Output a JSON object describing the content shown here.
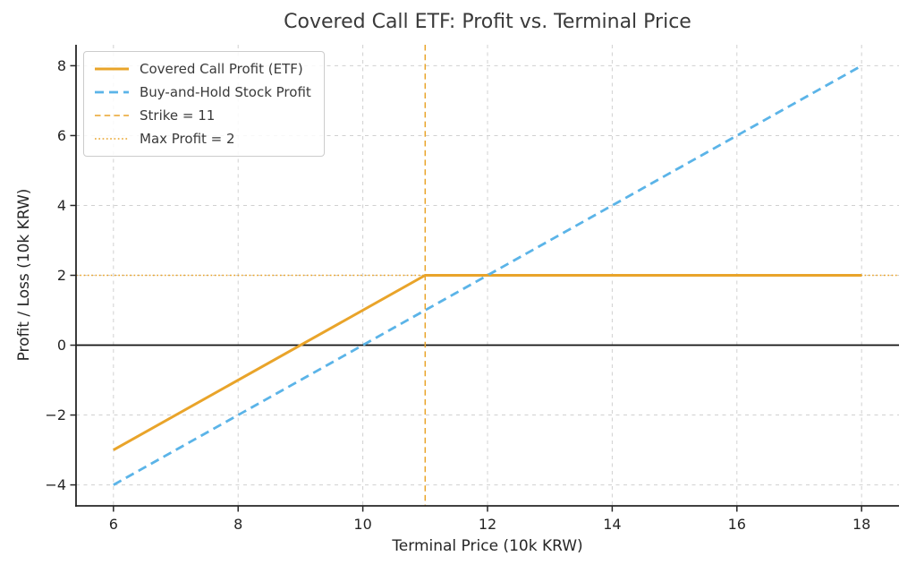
{
  "chart_data": {
    "type": "line",
    "title": "Covered Call ETF: Profit vs. Terminal Price",
    "xlabel": "Terminal Price (10k KRW)",
    "ylabel": "Profit / Loss (10k KRW)",
    "xlim": [
      5.4,
      18.6
    ],
    "ylim": [
      -4.6,
      8.6
    ],
    "xticks": [
      6,
      8,
      10,
      12,
      14,
      16,
      18
    ],
    "yticks": [
      -4,
      -2,
      0,
      2,
      4,
      6,
      8
    ],
    "grid": true,
    "legend_position": "upper-left",
    "series": [
      {
        "id": "covered-call-line",
        "name": "Covered Call Profit (ETF)",
        "x": [
          6,
          11,
          18
        ],
        "y": [
          -3,
          2,
          2
        ],
        "color": "#E9A42A",
        "style": "solid",
        "width": 3
      },
      {
        "id": "buy-and-hold-line",
        "name": "Buy-and-Hold Stock Profit",
        "x": [
          6,
          18
        ],
        "y": [
          -4,
          8
        ],
        "color": "#5BB4E8",
        "style": "dashed",
        "width": 2.8
      }
    ],
    "reference_lines": [
      {
        "id": "strike-line",
        "name": "Strike = 11",
        "orientation": "vertical",
        "value": 11,
        "color": "#E9A42A",
        "style": "dashed-thin",
        "width": 1.5
      },
      {
        "id": "max-profit-line",
        "name": "Max Profit = 2",
        "orientation": "horizontal",
        "value": 2,
        "color": "#E9A42A",
        "style": "dotted",
        "width": 1.5
      }
    ],
    "zero_line": {
      "value": 0,
      "color": "#111111",
      "width": 1.8
    }
  },
  "legend": {
    "items": [
      {
        "label": "Covered Call Profit (ETF)",
        "color": "#E9A42A",
        "style": "solid",
        "width": 3
      },
      {
        "label": "Buy-and-Hold Stock Profit",
        "color": "#5BB4E8",
        "style": "dashed",
        "width": 2.8
      },
      {
        "label": "Strike = 11",
        "color": "#E9A42A",
        "style": "dashed-thin",
        "width": 1.5
      },
      {
        "label": "Max Profit = 2",
        "color": "#E9A42A",
        "style": "dotted",
        "width": 1.5
      }
    ]
  },
  "colors": {
    "grid": "#D0D0D0",
    "axis": "#262626",
    "title_text": "#3A3A3A",
    "legend_border": "#CCCCCC"
  }
}
